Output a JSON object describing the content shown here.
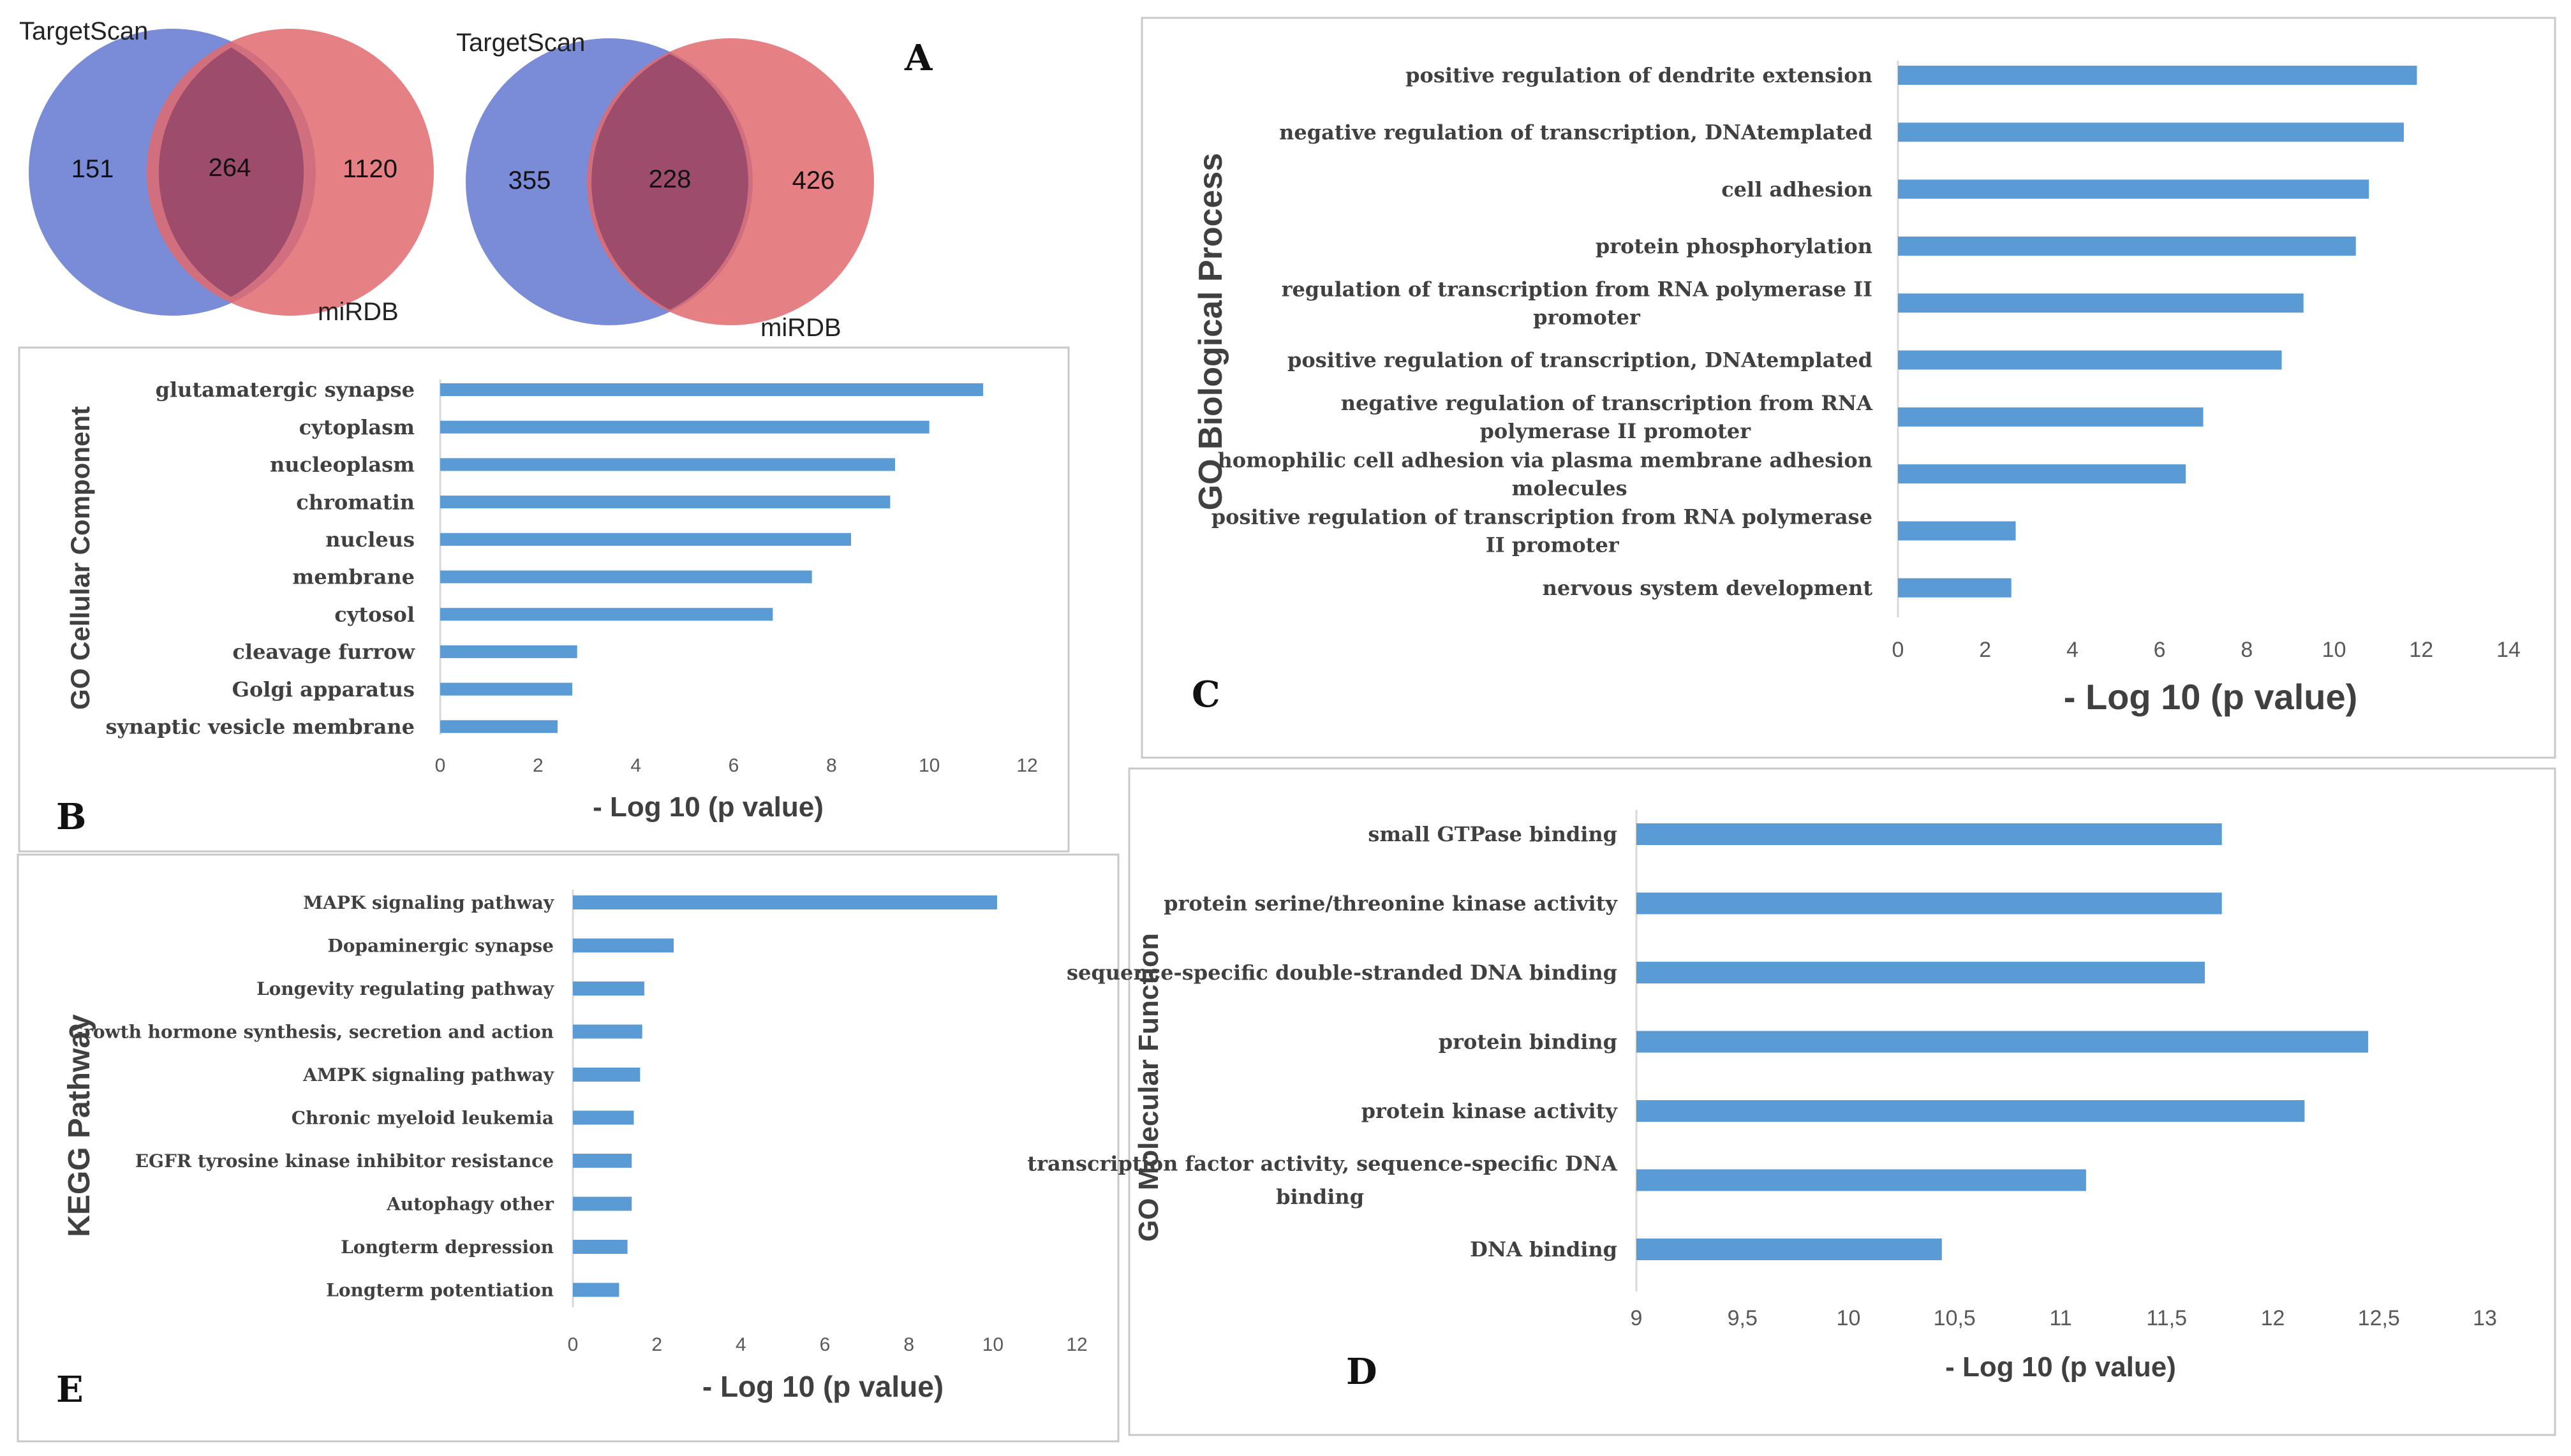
{
  "colors": {
    "bar": "#5b9bd5",
    "venn_blue": "#6f82d4",
    "venn_red": "#e06a6f",
    "venn_overlap": "#9b4a6a",
    "panel_border": "#c8c8c8",
    "axis": "#d9d9d9",
    "text": "#404040"
  },
  "venn": [
    {
      "left_label": "TargetScan",
      "right_label": "miRDB",
      "left_only": "151",
      "overlap": "264",
      "right_only": "1120"
    },
    {
      "left_label": "TargetScan",
      "right_label": "miRDB",
      "left_only": "355",
      "overlap": "228",
      "right_only": "426"
    }
  ],
  "panels": {
    "A": "A",
    "B": "B",
    "C": "C",
    "D": "D",
    "E": "E"
  },
  "chart_data": [
    {
      "id": "B",
      "type": "bar",
      "orientation": "horizontal",
      "ylabel": "GO Cellular Component",
      "xlabel": "- Log 10 (p value)",
      "xlim": [
        0,
        12
      ],
      "ticks": [
        "0",
        "2",
        "4",
        "6",
        "8",
        "10",
        "12"
      ],
      "categories": [
        "glutamatergic synapse",
        "cytoplasm",
        "nucleoplasm",
        "chromatin",
        "nucleus",
        "membrane",
        "cytosol",
        "cleavage furrow",
        "Golgi apparatus",
        "synaptic vesicle membrane"
      ],
      "values": [
        11.1,
        10.0,
        9.3,
        9.2,
        8.4,
        7.6,
        6.8,
        2.8,
        2.7,
        2.4
      ]
    },
    {
      "id": "C",
      "type": "bar",
      "orientation": "horizontal",
      "ylabel": "GO Biological Process",
      "xlabel": "- Log 10 (p value)",
      "xlim": [
        0,
        14
      ],
      "ticks": [
        "0",
        "2",
        "4",
        "6",
        "8",
        "10",
        "12",
        "14"
      ],
      "categories": [
        [
          "positive regulation of dendrite extension"
        ],
        [
          "negative regulation of transcription, DNAtemplated"
        ],
        [
          "cell adhesion"
        ],
        [
          "protein phosphorylation"
        ],
        [
          "regulation of transcription from RNA polymerase II",
          "promoter"
        ],
        [
          "positive regulation of transcription, DNAtemplated"
        ],
        [
          "negative regulation of transcription from RNA",
          "polymerase II promoter"
        ],
        [
          "homophilic cell adhesion via plasma membrane adhesion",
          "molecules"
        ],
        [
          "positive regulation of transcription from RNA polymerase",
          "II promoter"
        ],
        [
          "nervous system development"
        ]
      ],
      "values": [
        11.9,
        11.6,
        10.8,
        10.5,
        9.3,
        8.8,
        7.0,
        6.6,
        2.7,
        2.6
      ]
    },
    {
      "id": "D",
      "type": "bar",
      "orientation": "horizontal",
      "ylabel": "GO Molecular Function",
      "xlabel": "- Log 10 (p value)",
      "xlim": [
        9,
        13
      ],
      "ticks": [
        "9",
        "9,5",
        "10",
        "10,5",
        "11",
        "11,5",
        "12",
        "12,5",
        "13"
      ],
      "categories": [
        [
          "small GTPase binding"
        ],
        [
          "protein serine/threonine kinase activity"
        ],
        [
          "sequence-specific double-stranded DNA binding"
        ],
        [
          "protein binding"
        ],
        [
          "protein kinase activity"
        ],
        [
          "transcription factor activity, sequence-specific DNA",
          "binding"
        ],
        [
          "DNA binding"
        ]
      ],
      "values": [
        11.76,
        11.76,
        11.68,
        12.45,
        12.15,
        11.12,
        10.44
      ]
    },
    {
      "id": "E",
      "type": "bar",
      "orientation": "horizontal",
      "ylabel": "KEGG Pathway",
      "xlabel": "- Log 10 (p value)",
      "xlim": [
        0,
        12
      ],
      "ticks": [
        "0",
        "2",
        "4",
        "6",
        "8",
        "10",
        "12"
      ],
      "categories": [
        "MAPK signaling pathway",
        "Dopaminergic synapse",
        "Longevity regulating pathway",
        "Growth hormone synthesis, secretion and action",
        "AMPK signaling pathway",
        "Chronic myeloid leukemia",
        "EGFR tyrosine kinase inhibitor resistance",
        "Autophagy  other",
        "Longterm depression",
        "Longterm potentiation"
      ],
      "values": [
        10.1,
        2.4,
        1.7,
        1.65,
        1.6,
        1.45,
        1.4,
        1.4,
        1.3,
        1.1
      ]
    }
  ]
}
